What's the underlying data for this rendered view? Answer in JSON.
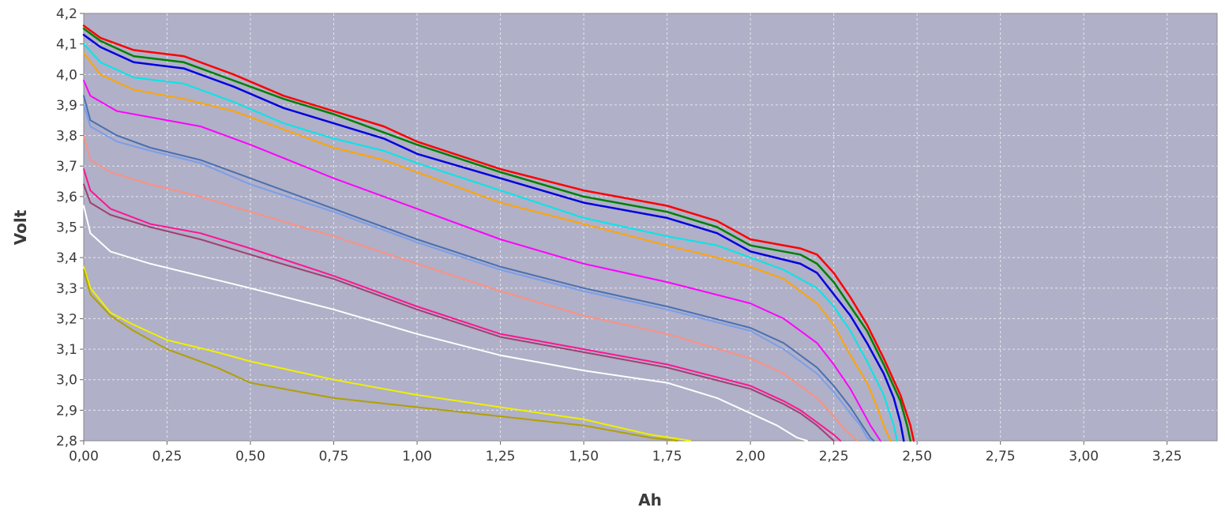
{
  "chart_data": {
    "type": "line",
    "xlabel": "Ah",
    "ylabel": "Volt",
    "xlim": [
      0.0,
      3.4
    ],
    "ylim": [
      2.8,
      4.2
    ],
    "x_ticks": [
      "0,00",
      "0,25",
      "0,50",
      "0,75",
      "1,00",
      "1,25",
      "1,50",
      "1,75",
      "2,00",
      "2,25",
      "2,50",
      "2,75",
      "3,00",
      "3,25"
    ],
    "y_ticks": [
      "2,8",
      "2,9",
      "3,0",
      "3,1",
      "3,2",
      "3,3",
      "3,4",
      "3,5",
      "3,6",
      "3,7",
      "3,8",
      "3,9",
      "4,0",
      "4,1",
      "4,2"
    ],
    "grid": true,
    "legend": "none",
    "plot_background": "#b0b0c8",
    "series": [
      {
        "color": "#ff0000",
        "x": [
          0,
          0.05,
          0.15,
          0.3,
          0.45,
          0.6,
          0.75,
          0.9,
          1.0,
          1.25,
          1.5,
          1.75,
          1.9,
          2.0,
          2.15,
          2.2,
          2.25,
          2.3,
          2.35,
          2.4,
          2.45,
          2.48,
          2.49
        ],
        "y": [
          4.16,
          4.12,
          4.08,
          4.06,
          4.0,
          3.93,
          3.88,
          3.83,
          3.78,
          3.69,
          3.62,
          3.57,
          3.52,
          3.46,
          3.43,
          3.41,
          3.35,
          3.27,
          3.18,
          3.07,
          2.95,
          2.85,
          2.8
        ]
      },
      {
        "color": "#008000",
        "x": [
          0,
          0.05,
          0.15,
          0.3,
          0.45,
          0.6,
          0.75,
          0.9,
          1.0,
          1.25,
          1.5,
          1.75,
          1.9,
          2.0,
          2.15,
          2.2,
          2.25,
          2.3,
          2.35,
          2.4,
          2.45,
          2.47,
          2.48
        ],
        "y": [
          4.15,
          4.11,
          4.06,
          4.04,
          3.98,
          3.92,
          3.87,
          3.81,
          3.77,
          3.68,
          3.6,
          3.55,
          3.5,
          3.44,
          3.41,
          3.38,
          3.32,
          3.24,
          3.16,
          3.05,
          2.93,
          2.85,
          2.8
        ]
      },
      {
        "color": "#0000e0",
        "x": [
          0,
          0.05,
          0.15,
          0.3,
          0.45,
          0.6,
          0.75,
          0.9,
          1.0,
          1.25,
          1.5,
          1.75,
          1.9,
          2.0,
          2.15,
          2.2,
          2.25,
          2.3,
          2.35,
          2.4,
          2.43,
          2.45,
          2.46
        ],
        "y": [
          4.13,
          4.09,
          4.04,
          4.02,
          3.96,
          3.89,
          3.84,
          3.79,
          3.74,
          3.66,
          3.58,
          3.53,
          3.48,
          3.42,
          3.38,
          3.35,
          3.28,
          3.21,
          3.12,
          3.02,
          2.94,
          2.86,
          2.8
        ]
      },
      {
        "color": "#00e8e8",
        "x": [
          0,
          0.05,
          0.15,
          0.3,
          0.45,
          0.6,
          0.75,
          0.9,
          1.0,
          1.25,
          1.5,
          1.75,
          1.9,
          2.0,
          2.1,
          2.2,
          2.25,
          2.3,
          2.35,
          2.4,
          2.43,
          2.44
        ],
        "y": [
          4.1,
          4.04,
          3.99,
          3.97,
          3.91,
          3.84,
          3.79,
          3.75,
          3.71,
          3.62,
          3.53,
          3.47,
          3.44,
          3.4,
          3.36,
          3.3,
          3.24,
          3.16,
          3.06,
          2.95,
          2.85,
          2.8
        ]
      },
      {
        "color": "#ffa500",
        "x": [
          0,
          0.05,
          0.15,
          0.3,
          0.45,
          0.6,
          0.75,
          0.9,
          1.0,
          1.25,
          1.5,
          1.75,
          1.9,
          2.0,
          2.1,
          2.2,
          2.25,
          2.3,
          2.35,
          2.38,
          2.4,
          2.42
        ],
        "y": [
          4.07,
          4.0,
          3.95,
          3.92,
          3.88,
          3.82,
          3.76,
          3.72,
          3.68,
          3.58,
          3.51,
          3.44,
          3.4,
          3.37,
          3.33,
          3.25,
          3.18,
          3.08,
          2.99,
          2.91,
          2.85,
          2.8
        ]
      },
      {
        "color": "#ff00ff",
        "x": [
          0,
          0.02,
          0.1,
          0.2,
          0.35,
          0.5,
          0.75,
          1.0,
          1.25,
          1.5,
          1.75,
          2.0,
          2.1,
          2.2,
          2.25,
          2.3,
          2.33,
          2.36,
          2.39
        ],
        "y": [
          3.98,
          3.93,
          3.88,
          3.86,
          3.83,
          3.77,
          3.66,
          3.56,
          3.46,
          3.38,
          3.32,
          3.25,
          3.2,
          3.12,
          3.05,
          2.97,
          2.91,
          2.85,
          2.8
        ]
      },
      {
        "color": "#4a70b0",
        "x": [
          0,
          0.02,
          0.1,
          0.2,
          0.35,
          0.5,
          0.75,
          1.0,
          1.25,
          1.5,
          1.75,
          2.0,
          2.1,
          2.2,
          2.25,
          2.3,
          2.33,
          2.36,
          2.37
        ],
        "y": [
          3.93,
          3.85,
          3.8,
          3.76,
          3.72,
          3.66,
          3.56,
          3.46,
          3.37,
          3.3,
          3.24,
          3.17,
          3.12,
          3.04,
          2.98,
          2.91,
          2.86,
          2.81,
          2.8
        ]
      },
      {
        "color": "#7b9ee8",
        "x": [
          0,
          0.02,
          0.1,
          0.2,
          0.35,
          0.5,
          0.75,
          1.0,
          1.25,
          1.5,
          1.75,
          2.0,
          2.1,
          2.2,
          2.25,
          2.3,
          2.33,
          2.35,
          2.36
        ],
        "y": [
          3.9,
          3.83,
          3.78,
          3.75,
          3.71,
          3.64,
          3.55,
          3.45,
          3.36,
          3.29,
          3.23,
          3.16,
          3.1,
          3.02,
          2.96,
          2.89,
          2.85,
          2.81,
          2.8
        ]
      },
      {
        "color": "#ff9080",
        "x": [
          0,
          0.02,
          0.08,
          0.2,
          0.35,
          0.5,
          0.75,
          1.0,
          1.25,
          1.5,
          1.75,
          2.0,
          2.1,
          2.2,
          2.25,
          2.28,
          2.3,
          2.32
        ],
        "y": [
          3.8,
          3.72,
          3.68,
          3.64,
          3.6,
          3.55,
          3.47,
          3.38,
          3.29,
          3.21,
          3.15,
          3.07,
          3.02,
          2.94,
          2.88,
          2.84,
          2.82,
          2.8
        ]
      },
      {
        "color": "#ff1493",
        "x": [
          0,
          0.02,
          0.08,
          0.2,
          0.35,
          0.5,
          0.75,
          1.0,
          1.25,
          1.5,
          1.75,
          2.0,
          2.1,
          2.15,
          2.2,
          2.25,
          2.27
        ],
        "y": [
          3.69,
          3.62,
          3.56,
          3.51,
          3.48,
          3.43,
          3.34,
          3.24,
          3.15,
          3.1,
          3.05,
          2.98,
          2.93,
          2.9,
          2.86,
          2.82,
          2.8
        ]
      },
      {
        "color": "#a04070",
        "x": [
          0,
          0.02,
          0.08,
          0.2,
          0.35,
          0.5,
          0.75,
          1.0,
          1.25,
          1.5,
          1.75,
          2.0,
          2.1,
          2.15,
          2.2,
          2.24,
          2.25
        ],
        "y": [
          3.64,
          3.58,
          3.54,
          3.5,
          3.46,
          3.41,
          3.33,
          3.23,
          3.14,
          3.09,
          3.04,
          2.97,
          2.92,
          2.89,
          2.85,
          2.81,
          2.8
        ]
      },
      {
        "color": "#ffffff",
        "x": [
          0,
          0.02,
          0.08,
          0.2,
          0.35,
          0.5,
          0.75,
          1.0,
          1.25,
          1.5,
          1.75,
          1.9,
          2.0,
          2.08,
          2.14,
          2.17
        ],
        "y": [
          3.57,
          3.48,
          3.42,
          3.38,
          3.34,
          3.3,
          3.23,
          3.15,
          3.08,
          3.03,
          2.99,
          2.94,
          2.89,
          2.85,
          2.81,
          2.8
        ]
      },
      {
        "color": "#f0f000",
        "x": [
          0,
          0.02,
          0.08,
          0.15,
          0.25,
          0.4,
          0.5,
          0.75,
          1.0,
          1.25,
          1.5,
          1.7,
          1.82
        ],
        "y": [
          3.37,
          3.3,
          3.22,
          3.18,
          3.13,
          3.09,
          3.06,
          3.0,
          2.95,
          2.91,
          2.87,
          2.82,
          2.8
        ]
      },
      {
        "color": "#b0a000",
        "x": [
          0,
          0.02,
          0.08,
          0.15,
          0.25,
          0.4,
          0.5,
          0.75,
          1.0,
          1.25,
          1.5,
          1.6,
          1.7,
          1.78
        ],
        "y": [
          3.36,
          3.28,
          3.21,
          3.16,
          3.1,
          3.04,
          2.99,
          2.94,
          2.91,
          2.88,
          2.85,
          2.83,
          2.81,
          2.8
        ]
      }
    ]
  }
}
